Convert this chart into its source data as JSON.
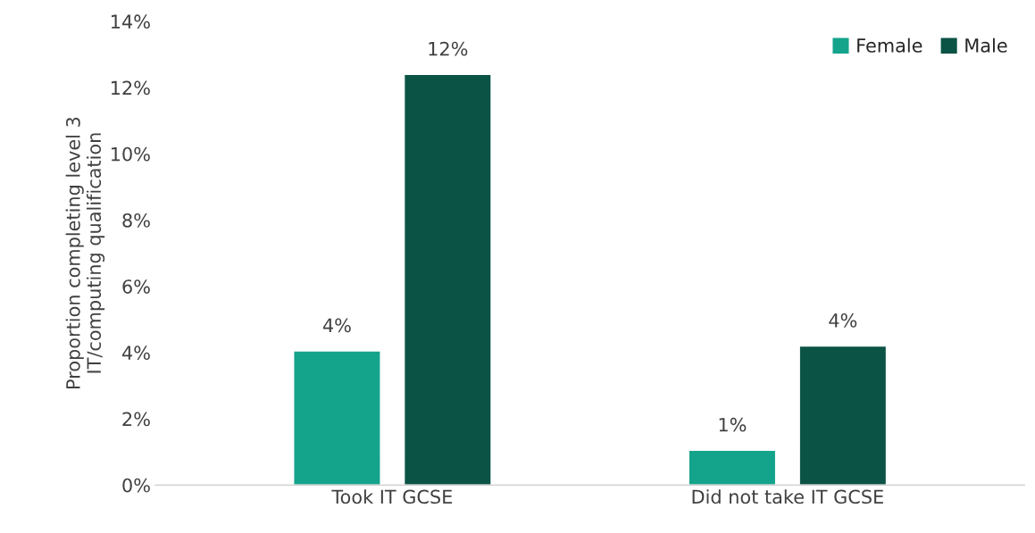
{
  "chart_data": {
    "type": "bar",
    "ylabel": "Proportion completing level 3\nIT/computing qualification",
    "categories": [
      "Took IT GCSE",
      "Did not take IT GCSE"
    ],
    "series": [
      {
        "name": "Female",
        "color": "#14a38b",
        "values": [
          4.05,
          1.05
        ],
        "value_labels": [
          "4%",
          "1%"
        ]
      },
      {
        "name": "Male",
        "color": "#0b5345",
        "values": [
          12.4,
          4.2
        ],
        "value_labels": [
          "12%",
          "4%"
        ]
      }
    ],
    "ylim": [
      0,
      14
    ],
    "yticks": [
      {
        "value": 0,
        "label": "0%"
      },
      {
        "value": 2,
        "label": "2%"
      },
      {
        "value": 4,
        "label": "4%"
      },
      {
        "value": 6,
        "label": "6%"
      },
      {
        "value": 8,
        "label": "8%"
      },
      {
        "value": 10,
        "label": "10%"
      },
      {
        "value": 12,
        "label": "12%"
      },
      {
        "value": 14,
        "label": "14%"
      }
    ],
    "grid": false,
    "legend": "top right"
  }
}
